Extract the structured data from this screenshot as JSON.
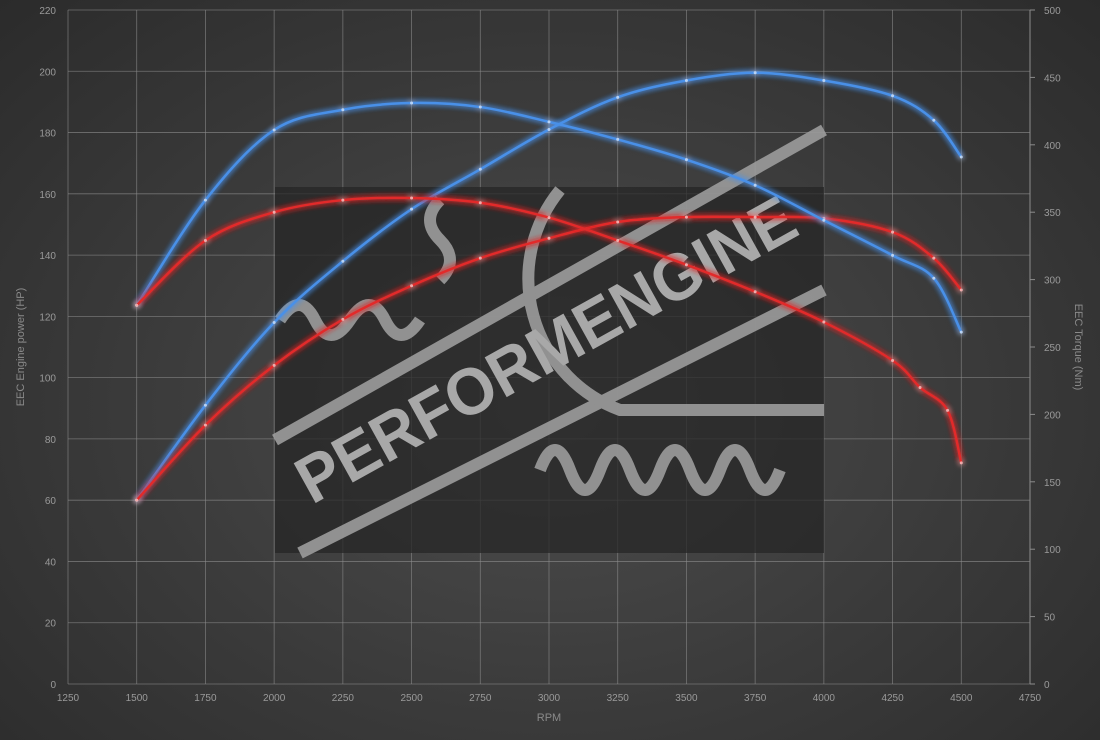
{
  "chart_data": {
    "type": "line",
    "title": "",
    "xlabel": "RPM",
    "ylabel_left": "EEC Engine power (HP)",
    "ylabel_right": "EEC Torque (Nm)",
    "xlim": [
      1250,
      4750
    ],
    "ylim_left": [
      0,
      220
    ],
    "ylim_right": [
      0,
      500
    ],
    "x_ticks": [
      1250,
      1500,
      1750,
      2000,
      2250,
      2500,
      2750,
      3000,
      3250,
      3500,
      3750,
      4000,
      4250,
      4500,
      4750
    ],
    "y_left_ticks": [
      0,
      20,
      40,
      60,
      80,
      100,
      120,
      140,
      160,
      180,
      200,
      220
    ],
    "y_right_ticks": [
      0,
      50,
      100,
      150,
      200,
      250,
      300,
      350,
      400,
      450,
      500
    ],
    "grid": true,
    "legend": "none",
    "colors": {
      "tuned": "#4a90e8",
      "stock": "#e22a2a"
    },
    "series": [
      {
        "axis": "left",
        "color": "tuned",
        "x": [
          1500,
          1750,
          2000,
          2250,
          2500,
          2750,
          3000,
          3250,
          3500,
          3750,
          4000,
          4250,
          4400,
          4500
        ],
        "values": [
          60,
          91,
          118,
          138,
          155,
          168,
          181,
          191.5,
          197,
          199.5,
          197,
          192,
          184,
          172
        ]
      },
      {
        "axis": "left",
        "color": "stock",
        "x": [
          1500,
          1750,
          2000,
          2250,
          2500,
          2750,
          3000,
          3250,
          3500,
          3750,
          4000,
          4250,
          4400,
          4500
        ],
        "values": [
          60,
          84.5,
          104,
          119,
          130,
          139,
          145.5,
          150.8,
          152.4,
          152.4,
          152,
          147.5,
          139,
          128.6
        ]
      },
      {
        "axis": "right",
        "color": "tuned",
        "x": [
          1500,
          1750,
          2000,
          2250,
          2500,
          2750,
          3000,
          3250,
          3500,
          3750,
          4000,
          4250,
          4400,
          4500
        ],
        "values": [
          281,
          359,
          411,
          426,
          431,
          428,
          417,
          404,
          389,
          370,
          344,
          318,
          301,
          261
        ]
      },
      {
        "axis": "right",
        "color": "stock",
        "x": [
          1500,
          1750,
          2000,
          2250,
          2500,
          2750,
          3000,
          3250,
          3500,
          3750,
          4000,
          4250,
          4350,
          4450,
          4500
        ],
        "values": [
          281,
          329,
          350,
          359,
          360.5,
          357,
          346,
          329,
          311,
          291,
          268.5,
          240,
          220,
          203,
          164
        ]
      }
    ]
  },
  "watermark": {
    "text": "PERFORMENGINE"
  }
}
